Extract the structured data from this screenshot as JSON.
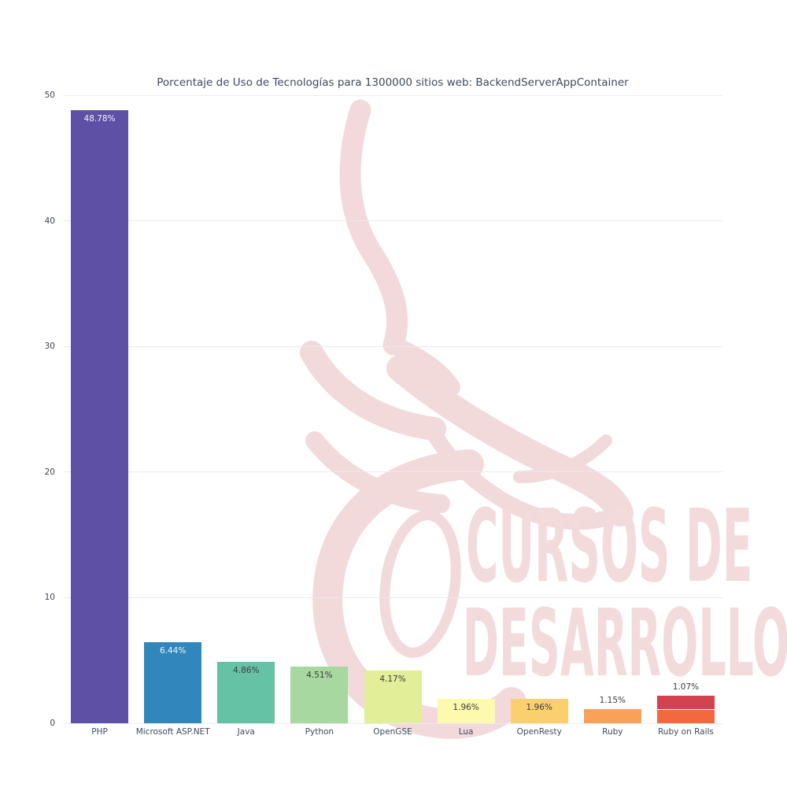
{
  "watermark": {
    "line1": "CURSOS DE",
    "line2": "DESARROLLO",
    "color": "#f2d7d9",
    "text_color": "#f3dadb"
  },
  "chart_data": {
    "type": "bar",
    "title": "Porcentaje de Uso de Tecnologías para 1300000 sitios web: BackendServerAppContainer",
    "xlabel": "",
    "ylabel": "",
    "ylim": [
      0,
      50
    ],
    "yticks": [
      0,
      10,
      20,
      30,
      40,
      50
    ],
    "grid": "horizontal",
    "legend": "none",
    "categories": [
      "PHP",
      "Microsoft ASP.NET",
      "Java",
      "Python",
      "OpenGSE",
      "Lua",
      "OpenResty",
      "Ruby",
      "Ruby on Rails"
    ],
    "values": [
      48.78,
      6.44,
      4.86,
      4.51,
      4.17,
      1.96,
      1.96,
      1.15,
      1.07
    ],
    "bars": [
      {
        "label": "PHP",
        "value": 48.78,
        "value_label": "48.78%",
        "color": "#5e51a5",
        "label_color": "#f4f2fa",
        "label_position": "inside"
      },
      {
        "label": "Microsoft ASP.NET",
        "value": 6.44,
        "value_label": "6.44%",
        "color": "#3187bc",
        "label_color": "#f4f2fa",
        "label_position": "inside"
      },
      {
        "label": "Java",
        "value": 4.86,
        "value_label": "4.86%",
        "color": "#66c2a5",
        "label_color": "#3b3b3b",
        "label_position": "inside"
      },
      {
        "label": "Python",
        "value": 4.51,
        "value_label": "4.51%",
        "color": "#a6d8a0",
        "label_color": "#3b3b3b",
        "label_position": "inside"
      },
      {
        "label": "OpenGSE",
        "value": 4.17,
        "value_label": "4.17%",
        "color": "#e2ef98",
        "label_color": "#3b3b3b",
        "label_position": "inside"
      },
      {
        "label": "Lua",
        "value": 1.96,
        "value_label": "1.96%",
        "color": "#fdfaae",
        "label_color": "#3b3b3b",
        "label_position": "inside"
      },
      {
        "label": "OpenResty",
        "value": 1.96,
        "value_label": "1.96%",
        "color": "#fad06e",
        "label_color": "#3b3b3b",
        "label_position": "inside"
      },
      {
        "label": "Ruby",
        "value": 1.15,
        "value_label": "1.15%",
        "color": "#f9a257",
        "label_color": "#3b3b3b",
        "label_position": "above"
      },
      {
        "label": "Ruby on Rails",
        "value": 1.07,
        "value_label": "1.07%",
        "color": "#f2693f",
        "label_color": "#3b3b3b",
        "label_position": "above",
        "stacked_segment": {
          "value": 1.07,
          "color": "#d2424f"
        }
      }
    ]
  }
}
